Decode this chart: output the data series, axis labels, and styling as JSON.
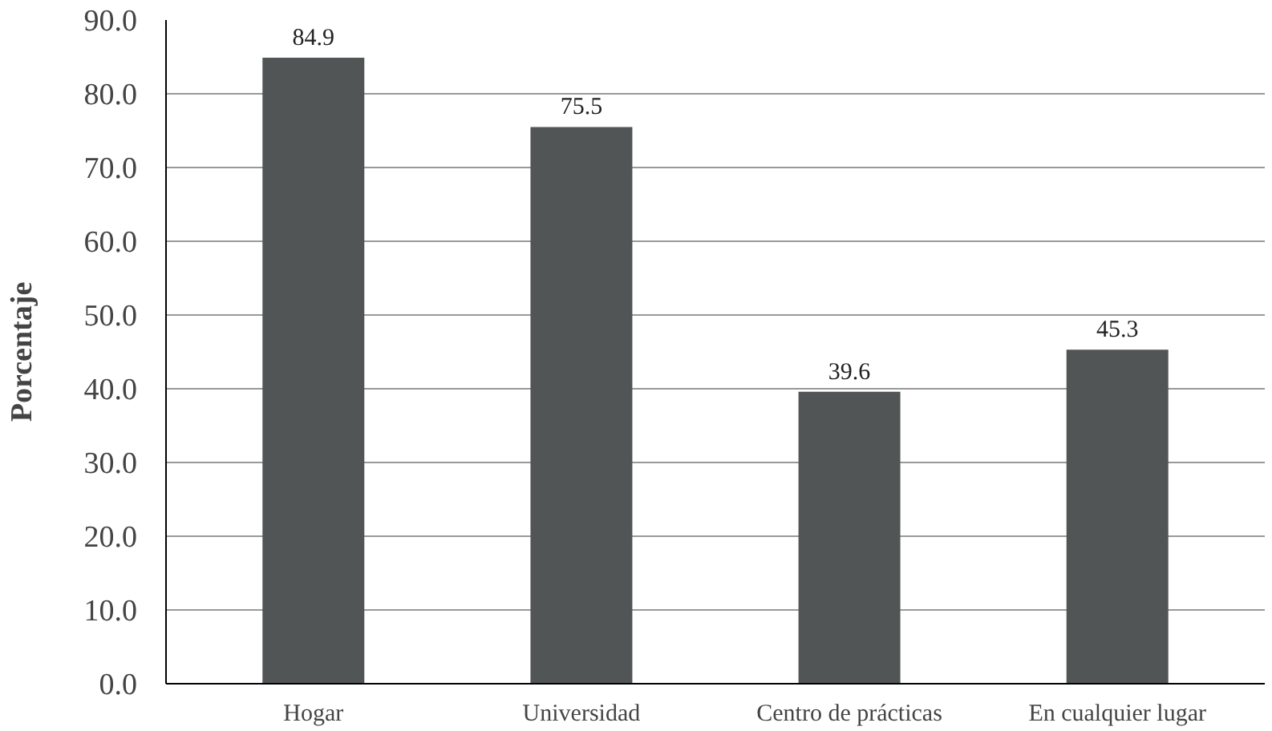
{
  "chart_data": {
    "type": "bar",
    "ylabel": "Porcentaje",
    "categories": [
      "Hogar",
      "Universidad",
      "Centro de prácticas",
      "En cualquier lugar"
    ],
    "values": [
      84.9,
      75.5,
      39.6,
      45.3
    ],
    "color": "#515555",
    "ylim": [
      0,
      90
    ],
    "yticks": [
      {
        "value": 0,
        "label": "0.0"
      },
      {
        "value": 10,
        "label": "10.0"
      },
      {
        "value": 20,
        "label": "20.0"
      },
      {
        "value": 30,
        "label": "30.0"
      },
      {
        "value": 40,
        "label": "40.0"
      },
      {
        "value": 50,
        "label": "50.0"
      },
      {
        "value": 60,
        "label": "60.0"
      },
      {
        "value": 70,
        "label": "70.0"
      },
      {
        "value": 80,
        "label": "80.0"
      },
      {
        "value": 90,
        "label": "90.0"
      }
    ],
    "grid": "y",
    "data_labels": true
  }
}
